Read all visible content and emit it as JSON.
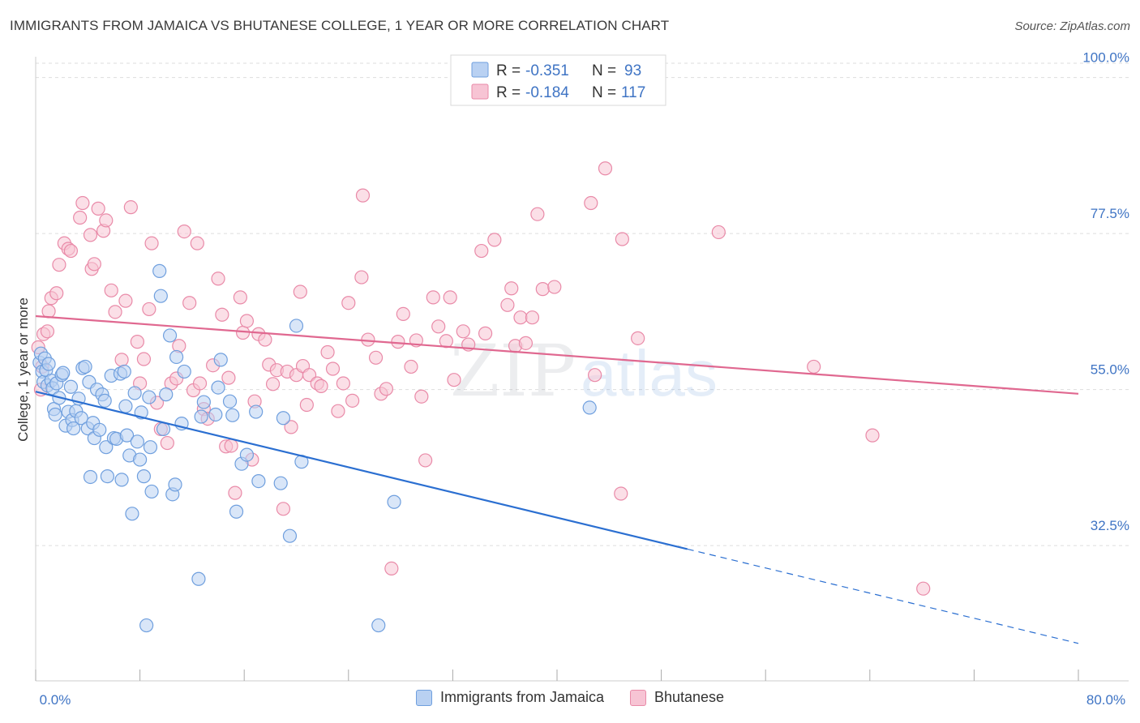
{
  "title": "IMMIGRANTS FROM JAMAICA VS BHUTANESE COLLEGE, 1 YEAR OR MORE CORRELATION CHART",
  "source": "Source: ZipAtlas.com",
  "watermark": {
    "zip": "ZIP",
    "atlas": "atlas"
  },
  "colors": {
    "blue_fill": "#b9d1f2",
    "blue_stroke": "#6f9fde",
    "blue_line": "#2b6fd1",
    "pink_fill": "#f7c4d4",
    "pink_stroke": "#e98aa8",
    "pink_line": "#e06890",
    "tick": "#3f74c4",
    "grid": "#dddddd"
  },
  "legend": {
    "r_label": "R =",
    "n_label": "N =",
    "rows": [
      {
        "r": "-0.351",
        "n": "93"
      },
      {
        "r": "-0.184",
        "n": "117"
      }
    ]
  },
  "chart_data": {
    "type": "scatter",
    "xlabel": "",
    "ylabel": "College, 1 year or more",
    "xlim": [
      0,
      80
    ],
    "ylim": [
      13,
      103
    ],
    "x_tick_labels": [
      "0.0%",
      "80.0%"
    ],
    "y_ticks": [
      {
        "value": 100,
        "label": "100.0%"
      },
      {
        "value": 77.5,
        "label": "77.5%"
      },
      {
        "value": 55,
        "label": "55.0%"
      },
      {
        "value": 32.5,
        "label": "32.5%"
      }
    ],
    "series": [
      {
        "name": "Immigrants from Jamaica",
        "trend": {
          "x0": 0,
          "y0": 54.7,
          "x1": 50,
          "y1": 32.0,
          "dash_to_x": 80,
          "dash_to_y": 18.4
        },
        "points": [
          [
            0.3,
            58.9
          ],
          [
            0.4,
            60.2
          ],
          [
            0.5,
            57.6
          ],
          [
            0.6,
            56.1
          ],
          [
            0.7,
            59.5
          ],
          [
            0.8,
            57.8
          ],
          [
            0.9,
            55.6
          ],
          [
            1.0,
            58.7
          ],
          [
            1.2,
            56.3
          ],
          [
            1.3,
            55.2
          ],
          [
            1.4,
            52.2
          ],
          [
            1.5,
            51.4
          ],
          [
            1.6,
            55.9
          ],
          [
            1.8,
            53.8
          ],
          [
            2.0,
            57.1
          ],
          [
            2.1,
            57.4
          ],
          [
            2.3,
            49.8
          ],
          [
            2.5,
            51.8
          ],
          [
            2.7,
            55.4
          ],
          [
            2.8,
            50.6
          ],
          [
            2.9,
            49.4
          ],
          [
            3.1,
            51.9
          ],
          [
            3.3,
            53.7
          ],
          [
            3.5,
            50.9
          ],
          [
            3.6,
            58.1
          ],
          [
            3.8,
            58.3
          ],
          [
            4.0,
            49.4
          ],
          [
            4.1,
            56.1
          ],
          [
            4.2,
            42.4
          ],
          [
            4.4,
            50.2
          ],
          [
            4.5,
            48.0
          ],
          [
            4.7,
            55.0
          ],
          [
            4.9,
            49.2
          ],
          [
            5.1,
            54.3
          ],
          [
            5.3,
            53.4
          ],
          [
            5.4,
            46.7
          ],
          [
            5.5,
            42.5
          ],
          [
            5.8,
            57.0
          ],
          [
            6.0,
            48.0
          ],
          [
            6.2,
            47.9
          ],
          [
            6.5,
            57.3
          ],
          [
            6.6,
            42.0
          ],
          [
            6.8,
            57.6
          ],
          [
            6.9,
            52.6
          ],
          [
            7.0,
            48.4
          ],
          [
            7.2,
            45.5
          ],
          [
            7.4,
            37.1
          ],
          [
            7.6,
            54.5
          ],
          [
            7.8,
            47.5
          ],
          [
            8.0,
            44.9
          ],
          [
            8.1,
            51.7
          ],
          [
            8.3,
            42.5
          ],
          [
            8.5,
            21.0
          ],
          [
            8.7,
            53.9
          ],
          [
            8.8,
            46.7
          ],
          [
            8.9,
            40.3
          ],
          [
            9.5,
            72.1
          ],
          [
            9.6,
            68.5
          ],
          [
            9.8,
            49.3
          ],
          [
            10.0,
            54.3
          ],
          [
            10.3,
            62.8
          ],
          [
            10.5,
            39.9
          ],
          [
            10.7,
            41.3
          ],
          [
            10.8,
            59.7
          ],
          [
            11.2,
            50.1
          ],
          [
            11.4,
            57.6
          ],
          [
            12.5,
            27.7
          ],
          [
            12.7,
            51.1
          ],
          [
            12.9,
            53.2
          ],
          [
            13.8,
            51.4
          ],
          [
            14.0,
            55.3
          ],
          [
            14.2,
            59.3
          ],
          [
            14.9,
            53.3
          ],
          [
            15.1,
            51.3
          ],
          [
            15.4,
            37.4
          ],
          [
            15.8,
            44.3
          ],
          [
            16.2,
            45.6
          ],
          [
            16.9,
            51.8
          ],
          [
            17.1,
            41.8
          ],
          [
            18.8,
            41.5
          ],
          [
            19.0,
            50.9
          ],
          [
            19.5,
            33.9
          ],
          [
            20.0,
            64.2
          ],
          [
            20.4,
            44.6
          ],
          [
            26.3,
            21.0
          ],
          [
            27.5,
            38.8
          ],
          [
            42.5,
            52.4
          ]
        ]
      },
      {
        "name": "Bhutanese",
        "trend": {
          "x0": 0,
          "y0": 65.6,
          "x1": 80,
          "y1": 54.4
        },
        "points": [
          [
            0.2,
            61.1
          ],
          [
            0.4,
            55.0
          ],
          [
            0.5,
            58.3
          ],
          [
            0.6,
            63.0
          ],
          [
            0.9,
            63.4
          ],
          [
            1.0,
            66.3
          ],
          [
            1.2,
            68.2
          ],
          [
            1.6,
            68.9
          ],
          [
            1.8,
            73.0
          ],
          [
            2.2,
            76.1
          ],
          [
            2.5,
            75.3
          ],
          [
            2.7,
            75.0
          ],
          [
            3.4,
            79.8
          ],
          [
            3.6,
            81.9
          ],
          [
            4.2,
            77.3
          ],
          [
            4.3,
            72.4
          ],
          [
            4.5,
            73.1
          ],
          [
            4.8,
            81.1
          ],
          [
            5.2,
            77.9
          ],
          [
            5.4,
            79.4
          ],
          [
            5.8,
            69.3
          ],
          [
            6.1,
            66.2
          ],
          [
            6.6,
            59.3
          ],
          [
            6.9,
            67.8
          ],
          [
            7.3,
            81.3
          ],
          [
            7.8,
            61.9
          ],
          [
            8.0,
            55.9
          ],
          [
            8.3,
            59.4
          ],
          [
            8.7,
            66.6
          ],
          [
            8.9,
            76.1
          ],
          [
            9.3,
            53.1
          ],
          [
            9.6,
            49.3
          ],
          [
            10.1,
            47.3
          ],
          [
            10.4,
            55.9
          ],
          [
            10.8,
            56.6
          ],
          [
            11.0,
            61.3
          ],
          [
            11.4,
            77.8
          ],
          [
            11.8,
            67.5
          ],
          [
            12.1,
            54.9
          ],
          [
            12.4,
            76.1
          ],
          [
            12.6,
            55.9
          ],
          [
            12.9,
            52.2
          ],
          [
            13.2,
            50.8
          ],
          [
            13.6,
            58.5
          ],
          [
            14.0,
            71.0
          ],
          [
            14.3,
            65.8
          ],
          [
            14.6,
            46.8
          ],
          [
            14.8,
            56.7
          ],
          [
            15.0,
            46.9
          ],
          [
            15.3,
            40.1
          ],
          [
            15.7,
            68.3
          ],
          [
            15.9,
            63.2
          ],
          [
            16.2,
            64.9
          ],
          [
            16.6,
            44.9
          ],
          [
            16.8,
            53.3
          ],
          [
            17.1,
            63.0
          ],
          [
            17.6,
            62.2
          ],
          [
            17.9,
            58.6
          ],
          [
            18.2,
            55.8
          ],
          [
            18.5,
            57.8
          ],
          [
            19.0,
            37.8
          ],
          [
            19.3,
            57.6
          ],
          [
            19.6,
            49.6
          ],
          [
            20.0,
            57.1
          ],
          [
            20.3,
            69.1
          ],
          [
            20.5,
            58.4
          ],
          [
            20.8,
            52.8
          ],
          [
            21.0,
            57.1
          ],
          [
            21.6,
            55.9
          ],
          [
            21.9,
            55.5
          ],
          [
            22.4,
            60.4
          ],
          [
            22.8,
            58.0
          ],
          [
            23.2,
            51.9
          ],
          [
            23.6,
            55.9
          ],
          [
            24.0,
            67.5
          ],
          [
            24.3,
            53.4
          ],
          [
            25.0,
            71.2
          ],
          [
            25.1,
            83.0
          ],
          [
            25.5,
            62.2
          ],
          [
            26.1,
            59.6
          ],
          [
            26.5,
            54.4
          ],
          [
            26.9,
            55.1
          ],
          [
            27.3,
            29.2
          ],
          [
            27.8,
            61.9
          ],
          [
            28.2,
            65.9
          ],
          [
            28.8,
            58.3
          ],
          [
            29.2,
            62.1
          ],
          [
            29.6,
            54.0
          ],
          [
            29.9,
            44.8
          ],
          [
            30.5,
            68.3
          ],
          [
            30.9,
            64.1
          ],
          [
            31.5,
            62.0
          ],
          [
            31.8,
            68.3
          ],
          [
            32.1,
            56.4
          ],
          [
            32.8,
            63.4
          ],
          [
            33.2,
            61.5
          ],
          [
            34.2,
            75.0
          ],
          [
            34.5,
            63.1
          ],
          [
            35.2,
            76.6
          ],
          [
            36.2,
            67.2
          ],
          [
            36.5,
            69.6
          ],
          [
            36.8,
            61.3
          ],
          [
            37.2,
            65.4
          ],
          [
            37.6,
            61.7
          ],
          [
            38.1,
            65.4
          ],
          [
            38.5,
            80.3
          ],
          [
            38.9,
            69.5
          ],
          [
            39.8,
            69.8
          ],
          [
            42.6,
            81.9
          ],
          [
            42.9,
            57.1
          ],
          [
            43.7,
            86.9
          ],
          [
            44.9,
            40.0
          ],
          [
            45.0,
            76.7
          ],
          [
            46.2,
            62.4
          ],
          [
            52.4,
            77.7
          ],
          [
            59.7,
            58.3
          ],
          [
            64.2,
            48.4
          ],
          [
            68.1,
            26.3
          ]
        ]
      }
    ]
  },
  "bottom_legend": [
    "Immigrants from Jamaica",
    "Bhutanese"
  ]
}
